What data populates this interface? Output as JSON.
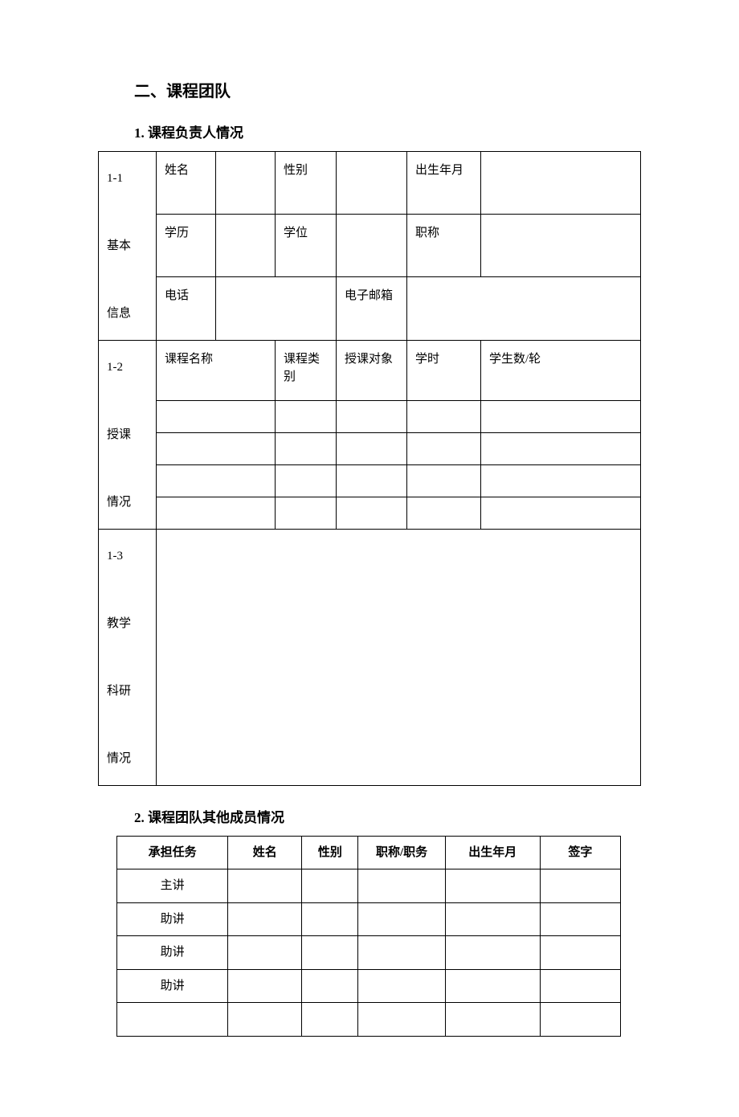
{
  "section": {
    "title": "二、课程团队",
    "subsection1_title": "1. 课程负责人情况",
    "subsection2_title": "2. 课程团队其他成员情况"
  },
  "table1": {
    "row1_label": "1-1\n\n基本\n\n信息",
    "row1_labels": [
      "1-1",
      "基本",
      "信息"
    ],
    "name_label": "姓名",
    "gender_label": "性别",
    "birth_label": "出生年月",
    "education_label": "学历",
    "degree_label": "学位",
    "title_label": "职称",
    "phone_label": "电话",
    "email_label": "电子邮箱",
    "row2_labels": [
      "1-2",
      "授课",
      "情况"
    ],
    "course_name_label": "课程名称",
    "course_type_label": "课程类别",
    "target_label": "授课对象",
    "hours_label": "学时",
    "students_label": "学生数/轮",
    "row3_labels": [
      "1-3",
      "教学",
      "科研",
      "情况"
    ]
  },
  "table2": {
    "headers": {
      "task": "承担任务",
      "name": "姓名",
      "gender": "性别",
      "title": "职称/职务",
      "birth": "出生年月",
      "signature": "签字"
    },
    "rows": [
      {
        "task": "主讲",
        "name": "",
        "gender": "",
        "title": "",
        "birth": "",
        "signature": ""
      },
      {
        "task": "助讲",
        "name": "",
        "gender": "",
        "title": "",
        "birth": "",
        "signature": ""
      },
      {
        "task": "助讲",
        "name": "",
        "gender": "",
        "title": "",
        "birth": "",
        "signature": ""
      },
      {
        "task": "助讲",
        "name": "",
        "gender": "",
        "title": "",
        "birth": "",
        "signature": ""
      },
      {
        "task": "",
        "name": "",
        "gender": "",
        "title": "",
        "birth": "",
        "signature": ""
      }
    ]
  },
  "styles": {
    "background_color": "#ffffff",
    "text_color": "#000000",
    "border_color": "#000000",
    "font_family": "SimSun",
    "title_fontsize": 20,
    "subtitle_fontsize": 17,
    "body_fontsize": 15
  }
}
